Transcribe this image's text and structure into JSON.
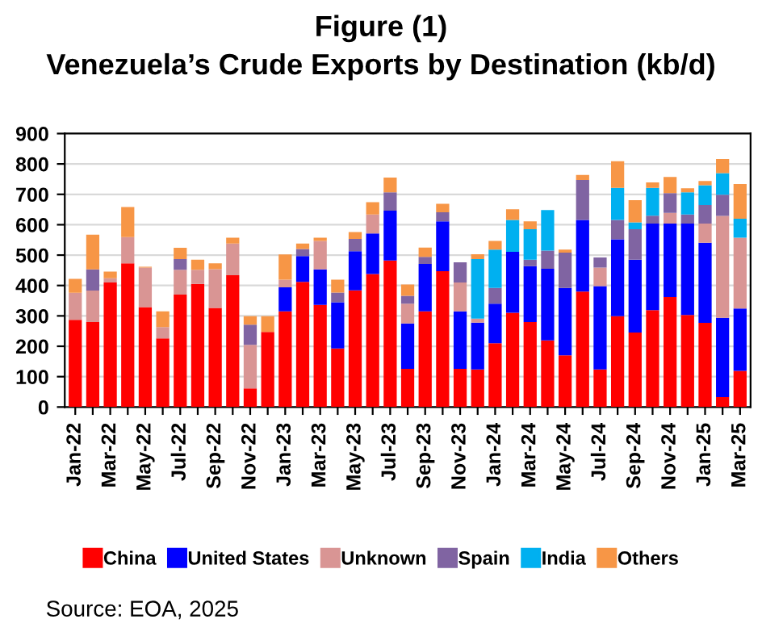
{
  "chart_data": {
    "type": "bar",
    "stacked": true,
    "title": "Figure (1)",
    "subtitle": "Venezuela’s Crude Exports by Destination (kb/d)",
    "categories": [
      "Jan-22",
      null,
      "Mar-22",
      null,
      "May-22",
      null,
      "Jul-22",
      null,
      "Sep-22",
      null,
      "Nov-22",
      null,
      "Jan-23",
      null,
      "Mar-23",
      null,
      "May-23",
      null,
      "Jul-23",
      null,
      "Sep-23",
      null,
      "Nov-23",
      null,
      "Jan-24",
      null,
      "Mar-24",
      null,
      "May-24",
      null,
      "Jul-24",
      null,
      "Sep-24",
      null,
      "Nov-24",
      null,
      "Jan-25",
      null,
      "Mar-25"
    ],
    "series": [
      {
        "name": "China",
        "color": "#ff0000",
        "values": [
          287,
          280,
          410,
          473,
          329,
          226,
          370,
          405,
          326,
          434,
          61,
          247,
          315,
          412,
          336,
          193,
          384,
          438,
          482,
          126,
          315,
          447,
          126,
          124,
          210,
          310,
          280,
          219,
          170,
          380,
          124,
          299,
          245,
          319,
          362,
          303,
          277,
          33,
          119
        ]
      },
      {
        "name": "United States",
        "color": "#0000ff",
        "values": [
          0,
          0,
          0,
          0,
          0,
          0,
          0,
          0,
          0,
          0,
          0,
          0,
          79,
          85,
          117,
          152,
          129,
          133,
          164,
          149,
          156,
          164,
          189,
          154,
          130,
          201,
          184,
          236,
          222,
          236,
          274,
          253,
          240,
          285,
          242,
          301,
          264,
          261,
          205
        ]
      },
      {
        "name": "Unknown",
        "color": "#d99594",
        "values": [
          89,
          103,
          14,
          86,
          130,
          37,
          82,
          47,
          128,
          104,
          144,
          0,
          25,
          0,
          94,
          0,
          0,
          63,
          0,
          65,
          0,
          0,
          95,
          13,
          0,
          0,
          0,
          0,
          0,
          0,
          61,
          0,
          0,
          0,
          35,
          0,
          63,
          335,
          233
        ]
      },
      {
        "name": "Spain",
        "color": "#8064a2",
        "values": [
          0,
          70,
          0,
          0,
          0,
          0,
          35,
          0,
          0,
          0,
          66,
          0,
          0,
          23,
          0,
          32,
          40,
          0,
          61,
          26,
          23,
          30,
          66,
          0,
          52,
          0,
          21,
          60,
          116,
          131,
          33,
          64,
          100,
          26,
          65,
          30,
          61,
          70,
          0
        ]
      },
      {
        "name": "India",
        "color": "#00b0f0",
        "values": [
          0,
          0,
          0,
          0,
          0,
          0,
          0,
          0,
          0,
          0,
          0,
          0,
          0,
          0,
          0,
          0,
          0,
          0,
          0,
          0,
          0,
          0,
          0,
          196,
          126,
          105,
          100,
          133,
          0,
          0,
          0,
          105,
          23,
          91,
          0,
          73,
          65,
          71,
          63
        ]
      },
      {
        "name": "Others",
        "color": "#f79646",
        "values": [
          46,
          114,
          22,
          99,
          3,
          52,
          37,
          33,
          19,
          19,
          28,
          52,
          83,
          18,
          10,
          42,
          23,
          40,
          48,
          37,
          31,
          28,
          0,
          16,
          29,
          35,
          26,
          0,
          10,
          17,
          0,
          88,
          73,
          18,
          53,
          13,
          14,
          46,
          114
        ]
      }
    ],
    "ylim": [
      0,
      900
    ],
    "yticks": [
      0,
      100,
      200,
      300,
      400,
      500,
      600,
      700,
      800,
      900
    ],
    "grid": "y",
    "legend": "bottom",
    "marker": "square",
    "annotations": [
      "Source: EOA, 2025"
    ]
  }
}
